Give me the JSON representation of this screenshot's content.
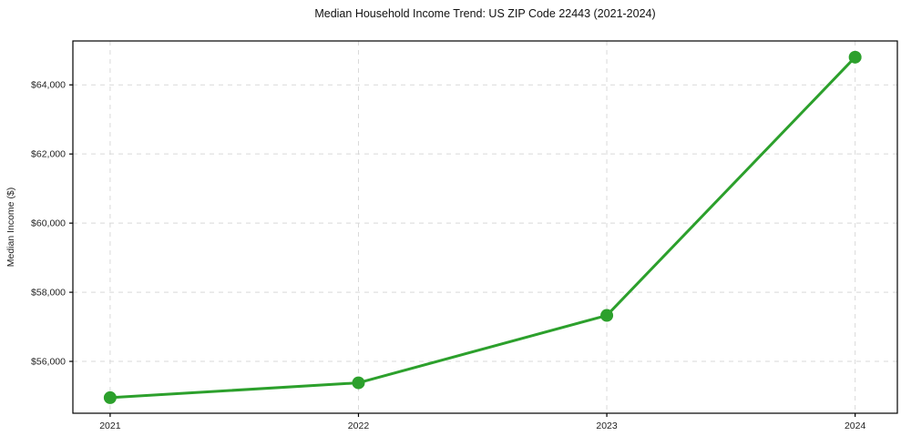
{
  "title": "Median Household Income Trend: US ZIP Code 22443 (2021-2024)",
  "chart_data": {
    "type": "line",
    "title": "Median Household Income Trend: US ZIP Code 22443 (2021-2024)",
    "xlabel": "",
    "ylabel": "Median Income ($)",
    "x": [
      2021,
      2022,
      2023,
      2024
    ],
    "xtick_labels": [
      "2021",
      "2022",
      "2023",
      "2024"
    ],
    "series": [
      {
        "name": "Median Household Income",
        "values": [
          54950,
          55380,
          57330,
          64800
        ]
      }
    ],
    "yticks": [
      56000,
      58000,
      60000,
      62000,
      64000
    ],
    "ytick_labels": [
      "$56,000",
      "$58,000",
      "$60,000",
      "$62,000",
      "$64,000"
    ],
    "ylim": [
      54500,
      65270
    ],
    "xlim": [
      2020.85,
      2024.17
    ],
    "grid": true,
    "legend": "none",
    "line_color": "#2ca02c",
    "marker_color": "#2ca02c",
    "grid_color": "#d9d9d9",
    "axis_color": "#000000",
    "tick_label_color": "#222222"
  }
}
